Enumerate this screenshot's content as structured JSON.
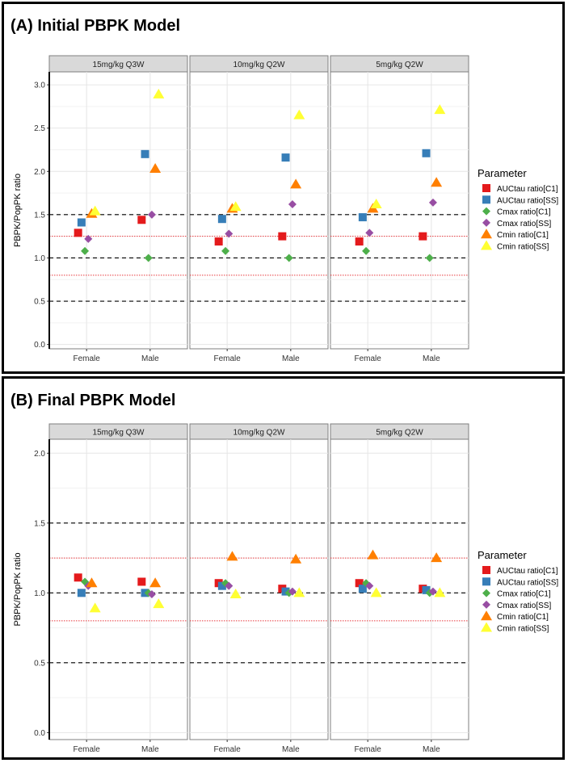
{
  "parameter_colors": {
    "AUCtau ratio[C1]": "#e41a1c",
    "AUCtau ratio[SS]": "#377eb8",
    "Cmax ratio[C1]": "#4daf4a",
    "Cmax ratio[SS]": "#984ea3",
    "Cmin ratio[C1]": "#ff7f00",
    "Cmin ratio[SS]": "#ffff33"
  },
  "chart_data": [
    {
      "type": "scatter",
      "title": "(A) Initial PBPK Model",
      "ylabel": "PBPK/PopPK ratio",
      "xlabel": "",
      "ylim": [
        -0.05,
        3.15
      ],
      "yticks": [
        "0.0",
        "0.5",
        "1.0",
        "1.5",
        "2.0",
        "2.5",
        "3.0"
      ],
      "facets": [
        "15mg/kg Q3W",
        "10mg/kg Q2W",
        "5mg/kg Q2W"
      ],
      "categories": [
        "Female",
        "Male"
      ],
      "legend_title": "Parameter",
      "legend_position": "right",
      "reference_lines": {
        "black_dashed": [
          0.5,
          1.0,
          1.5
        ],
        "red_dotted": [
          0.8,
          1.25
        ]
      },
      "series": [
        {
          "name": "AUCtau ratio[C1]",
          "shape": "square",
          "values": {
            "15mg/kg Q3W": [
              1.29,
              1.44
            ],
            "10mg/kg Q2W": [
              1.19,
              1.25
            ],
            "5mg/kg Q2W": [
              1.19,
              1.25
            ]
          }
        },
        {
          "name": "AUCtau ratio[SS]",
          "shape": "square",
          "values": {
            "15mg/kg Q3W": [
              1.41,
              2.2
            ],
            "10mg/kg Q2W": [
              1.45,
              2.16
            ],
            "5mg/kg Q2W": [
              1.47,
              2.21
            ]
          }
        },
        {
          "name": "Cmax ratio[C1]",
          "shape": "diamond",
          "values": {
            "15mg/kg Q3W": [
              1.08,
              1.0
            ],
            "10mg/kg Q2W": [
              1.08,
              1.0
            ],
            "5mg/kg Q2W": [
              1.08,
              1.0
            ]
          }
        },
        {
          "name": "Cmax ratio[SS]",
          "shape": "diamond",
          "values": {
            "15mg/kg Q3W": [
              1.22,
              1.5
            ],
            "10mg/kg Q2W": [
              1.28,
              1.62
            ],
            "5mg/kg Q2W": [
              1.29,
              1.64
            ]
          }
        },
        {
          "name": "Cmin ratio[C1]",
          "shape": "triangle",
          "values": {
            "15mg/kg Q3W": [
              1.51,
              2.03
            ],
            "10mg/kg Q2W": [
              1.57,
              1.85
            ],
            "5mg/kg Q2W": [
              1.57,
              1.87
            ]
          }
        },
        {
          "name": "Cmin ratio[SS]",
          "shape": "triangle",
          "values": {
            "15mg/kg Q3W": [
              1.54,
              2.89
            ],
            "10mg/kg Q2W": [
              1.59,
              2.65
            ],
            "5mg/kg Q2W": [
              1.62,
              2.71
            ]
          }
        }
      ]
    },
    {
      "type": "scatter",
      "title": "(B) Final PBPK Model",
      "ylabel": "PBPK/PopPK ratio",
      "xlabel": "",
      "ylim": [
        -0.05,
        2.1
      ],
      "yticks": [
        "0.0",
        "0.5",
        "1.0",
        "1.5",
        "2.0"
      ],
      "facets": [
        "15mg/kg Q3W",
        "10mg/kg Q2W",
        "5mg/kg Q2W"
      ],
      "categories": [
        "Female",
        "Male"
      ],
      "legend_title": "Parameter",
      "legend_position": "right",
      "reference_lines": {
        "black_dashed": [
          0.5,
          1.0,
          1.5
        ],
        "red_dotted": [
          0.8,
          1.25
        ]
      },
      "series": [
        {
          "name": "AUCtau ratio[C1]",
          "shape": "square",
          "values": {
            "15mg/kg Q3W": [
              1.11,
              1.08
            ],
            "10mg/kg Q2W": [
              1.07,
              1.03
            ],
            "5mg/kg Q2W": [
              1.07,
              1.03
            ]
          }
        },
        {
          "name": "AUCtau ratio[SS]",
          "shape": "square",
          "values": {
            "15mg/kg Q3W": [
              1.0,
              1.0
            ],
            "10mg/kg Q2W": [
              1.05,
              1.01
            ],
            "5mg/kg Q2W": [
              1.03,
              1.02
            ]
          }
        },
        {
          "name": "Cmax ratio[C1]",
          "shape": "diamond",
          "values": {
            "15mg/kg Q3W": [
              1.08,
              1.0
            ],
            "10mg/kg Q2W": [
              1.07,
              1.0
            ],
            "5mg/kg Q2W": [
              1.07,
              1.0
            ]
          }
        },
        {
          "name": "Cmax ratio[SS]",
          "shape": "diamond",
          "values": {
            "15mg/kg Q3W": [
              1.05,
              0.99
            ],
            "10mg/kg Q2W": [
              1.05,
              1.01
            ],
            "5mg/kg Q2W": [
              1.05,
              1.01
            ]
          }
        },
        {
          "name": "Cmin ratio[C1]",
          "shape": "triangle",
          "values": {
            "15mg/kg Q3W": [
              1.07,
              1.07
            ],
            "10mg/kg Q2W": [
              1.26,
              1.24
            ],
            "5mg/kg Q2W": [
              1.27,
              1.25
            ]
          }
        },
        {
          "name": "Cmin ratio[SS]",
          "shape": "triangle",
          "values": {
            "15mg/kg Q3W": [
              0.89,
              0.92
            ],
            "10mg/kg Q2W": [
              0.99,
              1.0
            ],
            "5mg/kg Q2W": [
              1.0,
              1.0
            ]
          }
        }
      ]
    }
  ]
}
